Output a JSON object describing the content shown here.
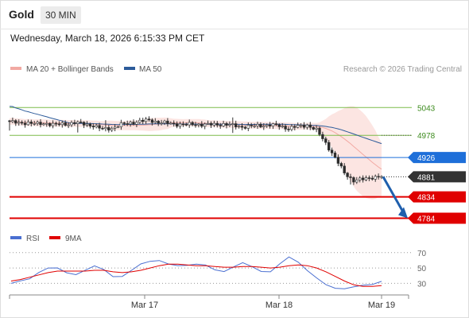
{
  "header": {
    "title": "Gold",
    "timeframe": "30 MIN",
    "datetime": "Wednesday, March 18, 2026 6:15:33 PM CET"
  },
  "legend": {
    "bb_label": "MA 20 + Bollinger Bands",
    "ma50_label": "MA 50",
    "research": "Research © 2026 Trading Central",
    "rsi_label": "RSI",
    "ma9_label": "9MA"
  },
  "colors": {
    "bb": "#f2a9a3",
    "ma50": "#2c5b9a",
    "rsi": "#4a6fd1",
    "ma9": "#e00000",
    "resistance": "#7dbb4a",
    "pivot": "#1e6fd9",
    "support": "#e00000",
    "price": "#333333",
    "arrow": "#1f5fad"
  },
  "chart_data": [
    {
      "type": "candlestick",
      "instrument": "Gold",
      "interval": "30 MIN",
      "x_labels": [
        "Mar 17",
        "Mar 18",
        "Mar 19"
      ],
      "ylim": [
        4770,
        5090
      ],
      "close_path": [
        [
          0,
          5010
        ],
        [
          3,
          5006
        ],
        [
          6,
          5008
        ],
        [
          9,
          5004
        ],
        [
          12,
          5006
        ],
        [
          15,
          5003
        ],
        [
          18,
          5004
        ],
        [
          21,
          5008
        ],
        [
          24,
          5004
        ],
        [
          27,
          5001
        ],
        [
          30,
          4992
        ],
        [
          33,
          4995
        ],
        [
          36,
          5003
        ],
        [
          39,
          5007
        ],
        [
          42,
          5011
        ],
        [
          45,
          5013
        ],
        [
          48,
          5009
        ],
        [
          51,
          5006
        ],
        [
          54,
          5004
        ],
        [
          57,
          5003
        ],
        [
          60,
          5004
        ],
        [
          63,
          5003
        ],
        [
          66,
          5003
        ],
        [
          69,
          5004
        ],
        [
          72,
          5001
        ],
        [
          75,
          4998
        ],
        [
          78,
          4999
        ],
        [
          81,
          5001
        ],
        [
          84,
          5002
        ],
        [
          87,
          5000
        ],
        [
          90,
          4994
        ],
        [
          93,
          4999
        ],
        [
          96,
          5002
        ],
        [
          99,
          4990
        ],
        [
          102,
          4960
        ],
        [
          105,
          4925
        ],
        [
          108,
          4890
        ],
        [
          111,
          4872
        ],
        [
          114,
          4875
        ],
        [
          117,
          4880
        ],
        [
          120,
          4881
        ]
      ],
      "levels": [
        {
          "value": 5043,
          "label": "5043",
          "kind": "resistance"
        },
        {
          "value": 4978,
          "label": "4978",
          "kind": "resistance"
        },
        {
          "value": 4926,
          "label": "4926",
          "kind": "pivot"
        },
        {
          "value": 4881,
          "label": "4881",
          "kind": "last_price"
        },
        {
          "value": 4834,
          "label": "4834",
          "kind": "support"
        },
        {
          "value": 4784,
          "label": "4784",
          "kind": "support"
        }
      ],
      "projection": {
        "from": 4881,
        "to": 4784
      },
      "indicators": [
        "MA 20 + Bollinger Bands",
        "MA 50"
      ]
    },
    {
      "type": "line",
      "name": "RSI panel",
      "ylim": [
        18,
        76
      ],
      "y_ticks": [
        70,
        50,
        30
      ],
      "series": [
        {
          "name": "RSI",
          "values": [
            30,
            36,
            38,
            43,
            47,
            49,
            46,
            44,
            47,
            50,
            46,
            40,
            42,
            48,
            53,
            56,
            60,
            58,
            55,
            52,
            52,
            53,
            50,
            48,
            51,
            54,
            50,
            47,
            48,
            56,
            62,
            55,
            47,
            40,
            30,
            22,
            20,
            25,
            30,
            31,
            32
          ]
        },
        {
          "name": "9MA",
          "values": [
            33,
            35,
            38,
            41,
            44,
            46,
            46,
            46,
            46,
            47,
            47,
            45,
            44,
            45,
            47,
            50,
            53,
            55,
            55,
            54,
            53,
            53,
            52,
            51,
            51,
            52,
            52,
            51,
            50,
            51,
            53,
            54,
            53,
            50,
            45,
            39,
            33,
            28,
            26,
            26,
            27
          ]
        }
      ]
    }
  ]
}
